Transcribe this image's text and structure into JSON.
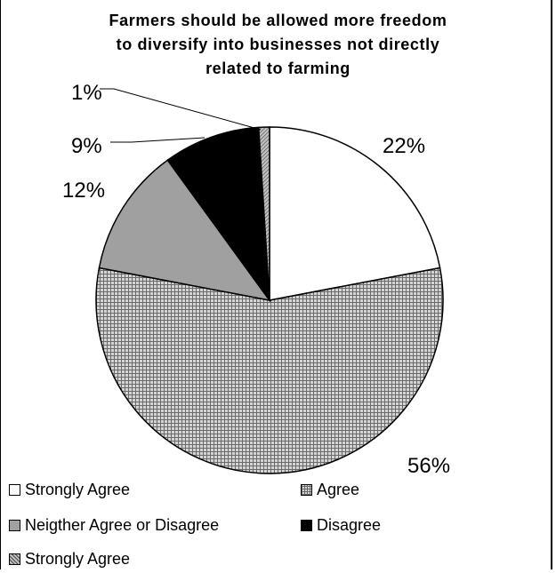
{
  "chart_data": {
    "type": "pie",
    "title": "Farmers should be allowed more freedom\nto diversify into businesses not directly\nrelated to farming",
    "series": [
      {
        "name": "Strongly Agree",
        "value": 22,
        "label": "22%",
        "fill": "white"
      },
      {
        "name": "Agree",
        "value": 56,
        "label": "56%",
        "fill": "fine-hatch"
      },
      {
        "name": "Neigther Agree or Disagree",
        "value": 12,
        "label": "12%",
        "fill": "gray"
      },
      {
        "name": "Disagree",
        "value": 9,
        "label": "9%",
        "fill": "black"
      },
      {
        "name": "Strongly Agree",
        "value": 1,
        "label": "1%",
        "fill": "diagonal-hatch"
      }
    ],
    "legend_position": "bottom"
  },
  "colors": {
    "white": "#ffffff",
    "gray": "#a0a0a0",
    "black": "#000000",
    "hatch_base": "#c8c8c8",
    "hatch_line": "#555555"
  }
}
